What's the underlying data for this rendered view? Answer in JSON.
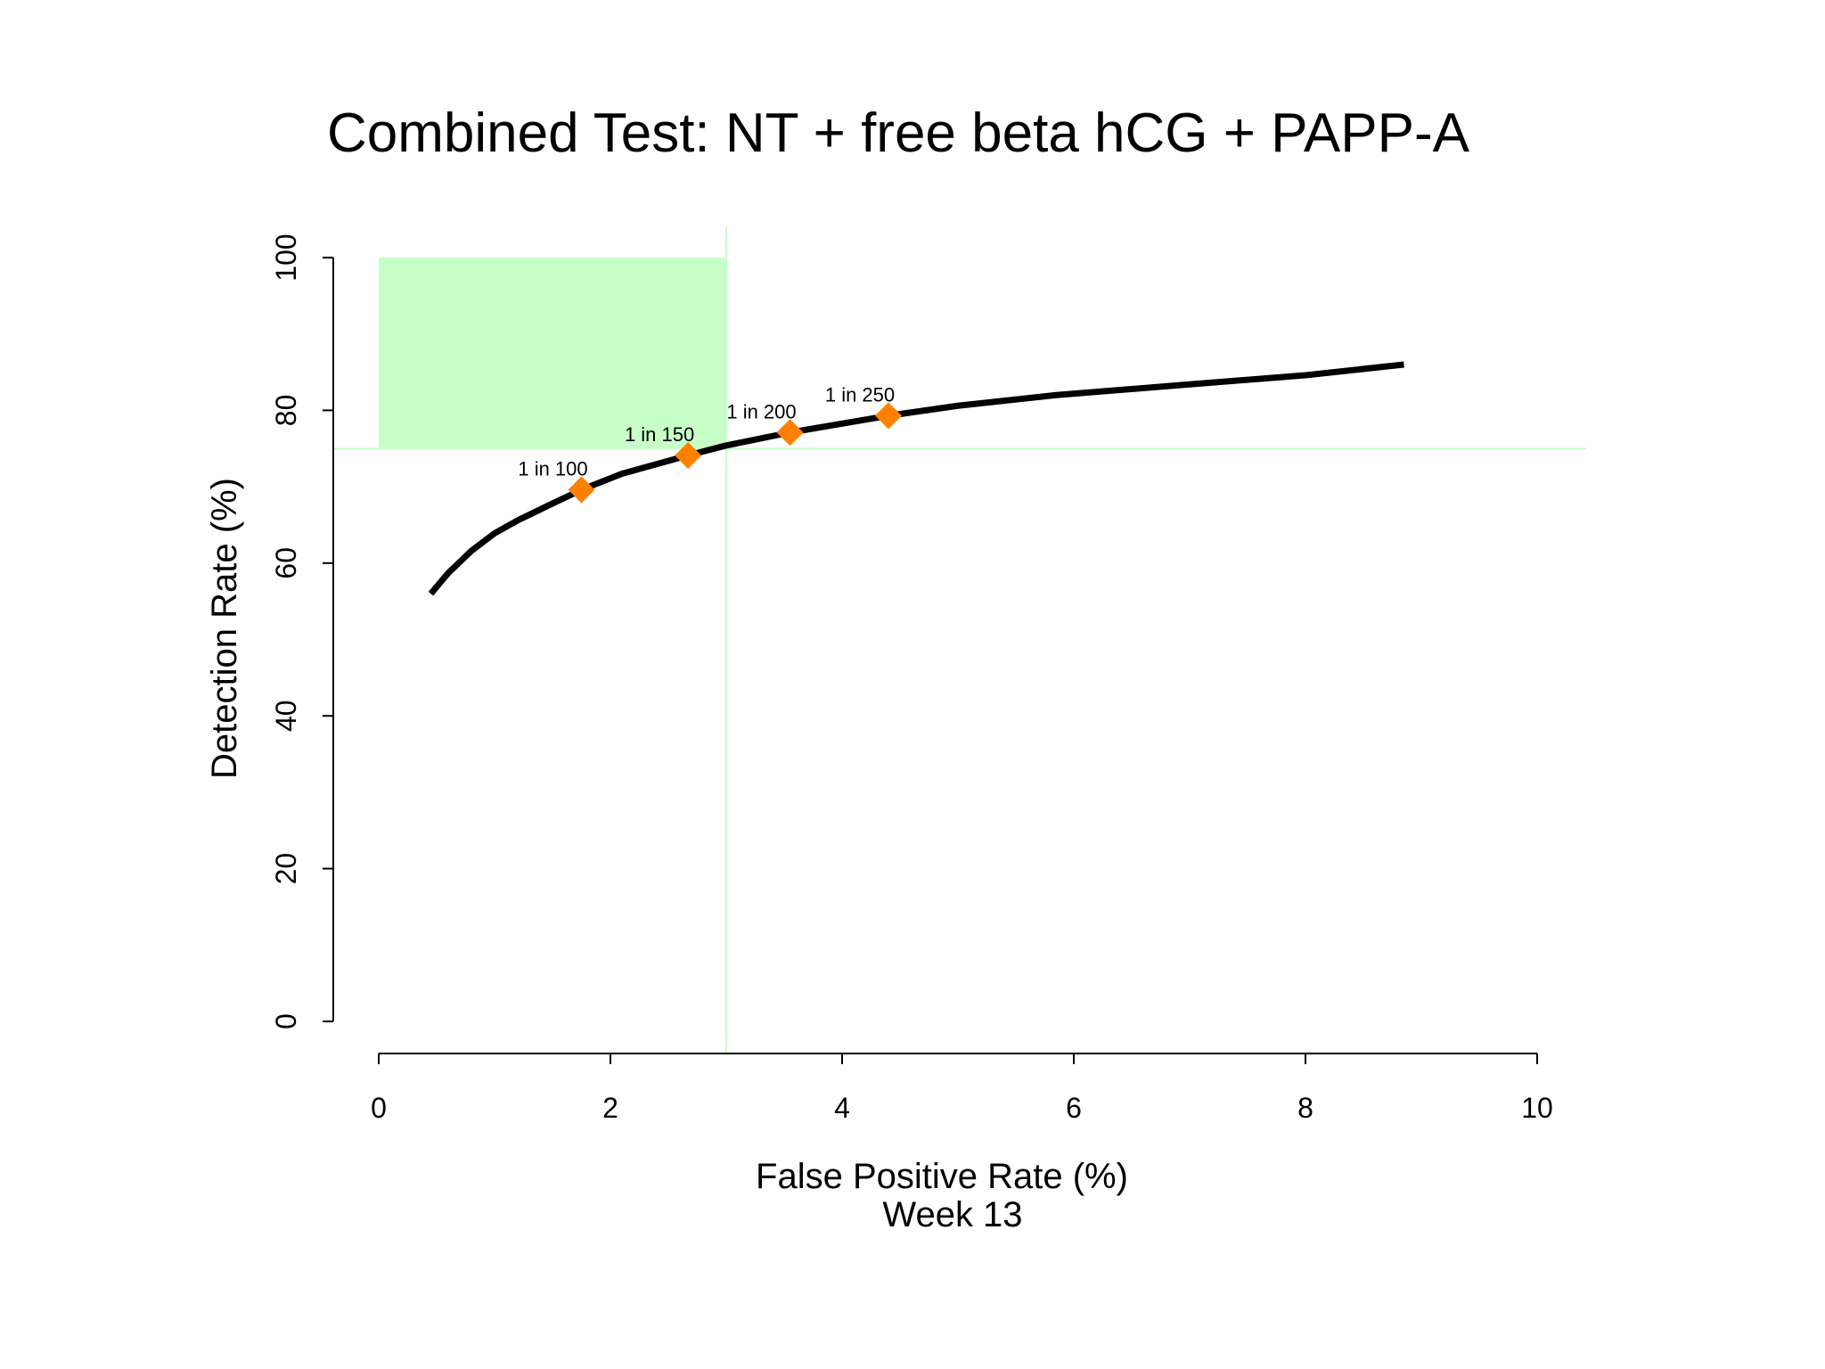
{
  "chart_data": {
    "type": "line",
    "title": "Combined Test: NT + free beta hCG + PAPP-A",
    "xlabel": "False Positive Rate (%)",
    "xlabel_sub": "Week 13",
    "ylabel": "Detection Rate (%)",
    "xlim": [
      0,
      10
    ],
    "ylim": [
      0,
      100
    ],
    "x_ticks": [
      "0",
      "2",
      "4",
      "6",
      "8",
      "10"
    ],
    "y_ticks": [
      "0",
      "20",
      "40",
      "60",
      "80",
      "100"
    ],
    "grid": false,
    "series": [
      {
        "x": [
          0.45,
          0.6,
          0.8,
          1.0,
          1.2,
          1.5,
          1.75,
          2.1,
          2.67,
          3.0,
          3.55,
          4.4,
          5.0,
          5.85,
          7.0,
          8.0,
          8.85
        ],
        "y": [
          56,
          58.7,
          61.6,
          63.9,
          65.6,
          67.8,
          69.6,
          71.7,
          74.1,
          75.4,
          77.1,
          79.3,
          80.6,
          82.0,
          83.4,
          84.6,
          86.0
        ],
        "color": "#000000"
      }
    ],
    "markers": [
      {
        "label": "1 in 100",
        "x": 1.75,
        "y": 69.6
      },
      {
        "label": "1 in 150",
        "x": 2.67,
        "y": 74.1
      },
      {
        "label": "1 in 200",
        "x": 3.55,
        "y": 77.1
      },
      {
        "label": "1 in 250",
        "x": 4.4,
        "y": 79.3
      }
    ],
    "marker_color": "#ff8000",
    "target_region": {
      "x": [
        0,
        3
      ],
      "y": [
        75,
        100
      ],
      "color": "#c8ffc8"
    },
    "reference_lines": {
      "x": 3,
      "y": 75,
      "color": "#c8ffc8"
    }
  }
}
